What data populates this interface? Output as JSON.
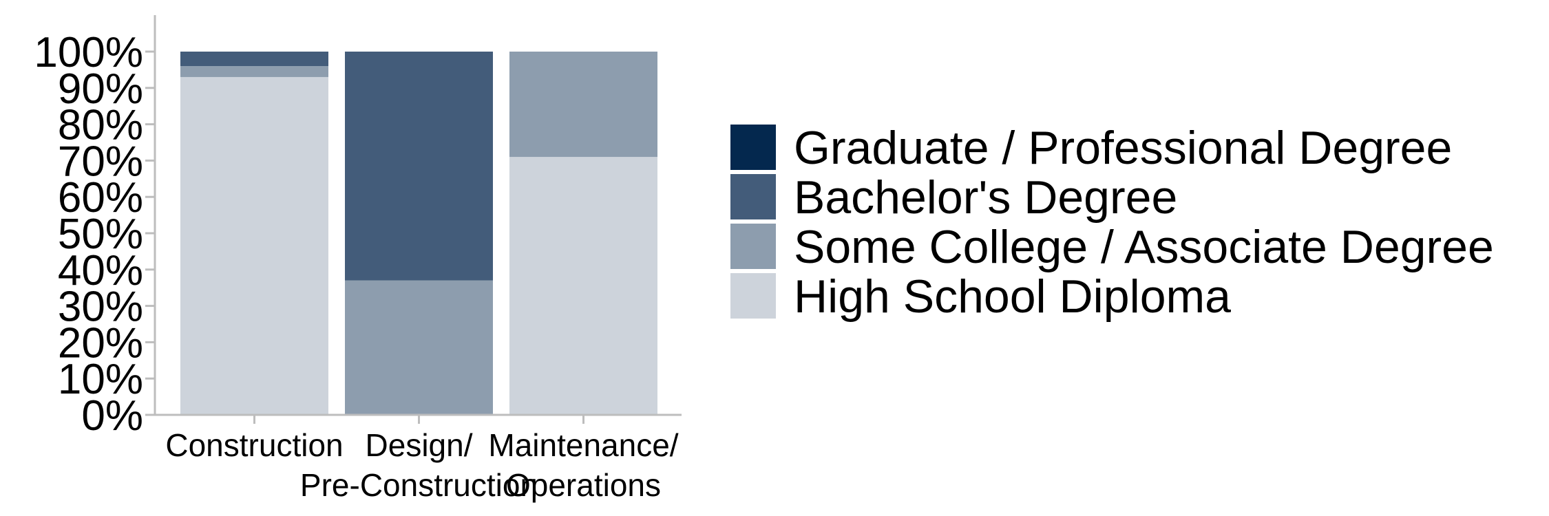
{
  "chart_data": {
    "type": "bar",
    "stacked": true,
    "percent": true,
    "title": "",
    "xlabel": "",
    "ylabel": "",
    "ylim": [
      0,
      100
    ],
    "yticks": [
      0,
      10,
      20,
      30,
      40,
      50,
      60,
      70,
      80,
      90,
      100
    ],
    "ytick_labels": [
      "0%",
      "10%",
      "20%",
      "30%",
      "40%",
      "50%",
      "60%",
      "70%",
      "80%",
      "90%",
      "100%"
    ],
    "categories": [
      [
        "Construction"
      ],
      [
        "Design/",
        "Pre-Construction"
      ],
      [
        "Maintenance/",
        "Operations"
      ]
    ],
    "series": [
      {
        "name": "High School Diploma",
        "color": "#cdd3db",
        "values": [
          93,
          0,
          71
        ]
      },
      {
        "name": "Some College / Associate Degree",
        "color": "#8d9dae",
        "values": [
          3,
          37,
          29
        ]
      },
      {
        "name": "Bachelor's Degree",
        "color": "#435c7a",
        "values": [
          4,
          63,
          0
        ]
      },
      {
        "name": "Graduate / Professional Degree",
        "color": "#04284e",
        "values": [
          0,
          0,
          0
        ]
      }
    ],
    "legend_order": [
      3,
      2,
      1,
      0
    ],
    "legend_position": "right",
    "grid": false
  }
}
